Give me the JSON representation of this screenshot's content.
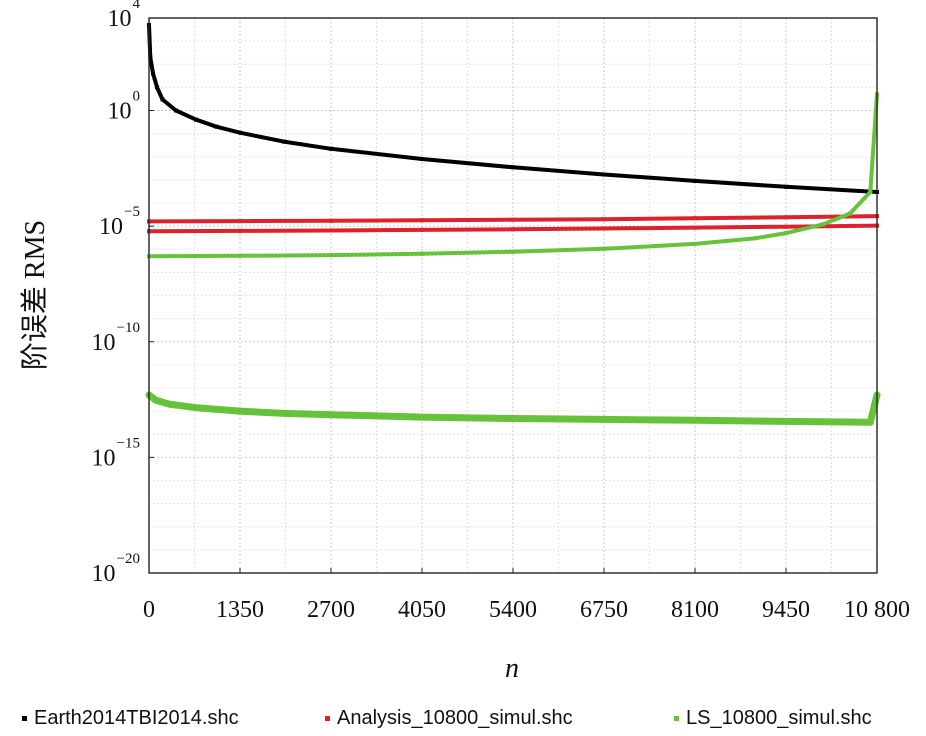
{
  "chart_data": {
    "type": "scatter",
    "title": "",
    "xlabel": "n",
    "ylabel": "阶误差 RMS",
    "x_tick_labels": [
      "0",
      "1350",
      "2700",
      "4050",
      "5400",
      "6750",
      "8100",
      "9450",
      "10 800"
    ],
    "x_ticks": [
      0,
      1350,
      2700,
      4050,
      5400,
      6750,
      8100,
      9450,
      10800
    ],
    "xlim": [
      0,
      10800
    ],
    "y_scale": "log",
    "ylim": [
      1e-20,
      10000.0
    ],
    "y_ticks": [
      {
        "value": 10000.0,
        "base": "10",
        "exp": "4"
      },
      {
        "value": 1.0,
        "base": "10",
        "exp": "0"
      },
      {
        "value": 1e-05,
        "base": "10",
        "exp": "−5"
      },
      {
        "value": 1e-10,
        "base": "10",
        "exp": "−10"
      },
      {
        "value": 1e-15,
        "base": "10",
        "exp": "−15"
      },
      {
        "value": 1e-20,
        "base": "10",
        "exp": "−20"
      }
    ],
    "grid": true,
    "legend_position": "bottom",
    "series": [
      {
        "name": "Earth2014TBI2014.shc",
        "color": "#000000",
        "points": [
          [
            0,
            5000
          ],
          [
            20,
            200
          ],
          [
            60,
            40
          ],
          [
            120,
            10
          ],
          [
            200,
            3
          ],
          [
            400,
            1
          ],
          [
            700,
            0.4
          ],
          [
            1000,
            0.2
          ],
          [
            1350,
            0.11
          ],
          [
            2000,
            0.045
          ],
          [
            2700,
            0.022
          ],
          [
            4050,
            0.008
          ],
          [
            5400,
            0.0035
          ],
          [
            6750,
            0.0017
          ],
          [
            8100,
            0.0009
          ],
          [
            9450,
            0.0005
          ],
          [
            10800,
            0.0003
          ]
        ]
      },
      {
        "name": "Analysis_10800_simul.shc",
        "color": "#e0212b",
        "points": [
          [
            0,
            1.6e-05
          ],
          [
            1350,
            1.65e-05
          ],
          [
            2700,
            1.7e-05
          ],
          [
            4050,
            1.8e-05
          ],
          [
            5400,
            1.9e-05
          ],
          [
            6750,
            2e-05
          ],
          [
            8100,
            2.2e-05
          ],
          [
            9450,
            2.4e-05
          ],
          [
            10800,
            2.7e-05
          ]
        ]
      },
      {
        "name": "Analysis_10800_simul.shc",
        "color": "#e0212b",
        "points": [
          [
            0,
            6e-06
          ],
          [
            1350,
            6.2e-06
          ],
          [
            2700,
            6.5e-06
          ],
          [
            4050,
            6.9e-06
          ],
          [
            5400,
            7.3e-06
          ],
          [
            6750,
            7.9e-06
          ],
          [
            8100,
            8.6e-06
          ],
          [
            9450,
            9.4e-06
          ],
          [
            10800,
            1.05e-05
          ]
        ]
      },
      {
        "name": "LS_10800_simul.shc",
        "color": "#66c23a",
        "points": [
          [
            0,
            5e-07
          ],
          [
            1350,
            5.2e-07
          ],
          [
            2700,
            5.6e-07
          ],
          [
            4050,
            6.4e-07
          ],
          [
            5400,
            7.8e-07
          ],
          [
            6750,
            1.05e-06
          ],
          [
            8100,
            1.7e-06
          ],
          [
            9000,
            3e-06
          ],
          [
            9450,
            5e-06
          ],
          [
            10000,
            1.2e-05
          ],
          [
            10400,
            3.5e-05
          ],
          [
            10700,
            0.0003
          ],
          [
            10800,
            5
          ]
        ]
      },
      {
        "name": "LS_10800_simul.shc",
        "color": "#66c23a",
        "points": [
          [
            0,
            5e-13
          ],
          [
            100,
            3e-13
          ],
          [
            300,
            2e-13
          ],
          [
            700,
            1.4e-13
          ],
          [
            1350,
            1e-13
          ],
          [
            2000,
            8e-14
          ],
          [
            2700,
            7e-14
          ],
          [
            4050,
            5.5e-14
          ],
          [
            5400,
            4.8e-14
          ],
          [
            6750,
            4.4e-14
          ],
          [
            8100,
            4e-14
          ],
          [
            9450,
            3.6e-14
          ],
          [
            10700,
            3.3e-14
          ],
          [
            10800,
            5e-13
          ]
        ]
      }
    ],
    "legend": [
      {
        "label": "Earth2014TBI2014.shc",
        "color": "#000000"
      },
      {
        "label": "Analysis_10800_simul.shc",
        "color": "#e0212b"
      },
      {
        "label": "LS_10800_simul.shc",
        "color": "#66c23a"
      }
    ]
  }
}
